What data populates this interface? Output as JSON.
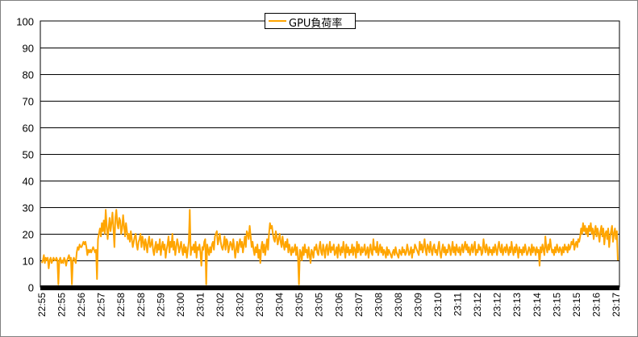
{
  "colors": {
    "series": "#FFA500",
    "grid": "#000000",
    "axis_band": "#000000"
  },
  "chart_data": {
    "type": "line",
    "title": "",
    "xlabel": "",
    "ylabel": "",
    "ylim": [
      0,
      100
    ],
    "yticks": [
      "0",
      "10",
      "20",
      "30",
      "40",
      "50",
      "60",
      "70",
      "80",
      "90",
      "100"
    ],
    "grid": true,
    "legend_position": "top",
    "x_tick_labels": [
      "22:55",
      "22:55",
      "22:56",
      "22:57",
      "22:58",
      "22:58",
      "22:59",
      "23:00",
      "23:01",
      "23:02",
      "23:02",
      "23:03",
      "23:04",
      "23:05",
      "23:05",
      "23:06",
      "23:07",
      "23:08",
      "23:08",
      "23:09",
      "23:10",
      "23:11",
      "23:12",
      "23:12",
      "23:13",
      "23:14",
      "23:15",
      "23:15",
      "23:16",
      "23:17"
    ],
    "series": [
      {
        "name": "GPU負荷率",
        "values": [
          9,
          10,
          12,
          9,
          11,
          10,
          11,
          7,
          10,
          11,
          9,
          10,
          11,
          10,
          10,
          11,
          10,
          1,
          10,
          11,
          9,
          10,
          9,
          11,
          10,
          8,
          10,
          11,
          12,
          10,
          11,
          1,
          10,
          11,
          10,
          9,
          13,
          15,
          14,
          16,
          15,
          15,
          16,
          17,
          16,
          17,
          15,
          12,
          14,
          13,
          14,
          13,
          14,
          15,
          14,
          13,
          14,
          3,
          18,
          20,
          22,
          19,
          24,
          21,
          25,
          20,
          29,
          23,
          18,
          22,
          26,
          21,
          24,
          28,
          22,
          15,
          26,
          29,
          24,
          22,
          26,
          25,
          20,
          22,
          27,
          23,
          19,
          24,
          21,
          18,
          20,
          17,
          21,
          18,
          15,
          17,
          19,
          20,
          16,
          14,
          17,
          18,
          20,
          15,
          19,
          17,
          14,
          18,
          16,
          13,
          17,
          19,
          15,
          16,
          18,
          14,
          12,
          15,
          17,
          13,
          16,
          14,
          18,
          12,
          15,
          17,
          14,
          16,
          11,
          14,
          16,
          19,
          13,
          17,
          15,
          20,
          14,
          17,
          12,
          15,
          18,
          16,
          13,
          15,
          17,
          14,
          12,
          16,
          13,
          15,
          11,
          14,
          17,
          29,
          12,
          15,
          14,
          16,
          13,
          17,
          11,
          15,
          14,
          16,
          13,
          8,
          15,
          14,
          17,
          18,
          1,
          16,
          14,
          12,
          15,
          13,
          16,
          17,
          14,
          19,
          20,
          21,
          16,
          18,
          20,
          17,
          15,
          14,
          16,
          19,
          14,
          18,
          17,
          13,
          15,
          17,
          16,
          14,
          18,
          15,
          11,
          14,
          17,
          13,
          16,
          18,
          15,
          17,
          13,
          16,
          19,
          15,
          21,
          20,
          18,
          23,
          19,
          15,
          17,
          14,
          12,
          15,
          13,
          16,
          11,
          14,
          9,
          15,
          17,
          13,
          16,
          12,
          15,
          18,
          14,
          20,
          24,
          22,
          23,
          20,
          18,
          17,
          21,
          19,
          16,
          18,
          20,
          17,
          15,
          19,
          16,
          14,
          17,
          15,
          18,
          13,
          16,
          14,
          12,
          15,
          13,
          14,
          16,
          12,
          15,
          11,
          1,
          14,
          13,
          10,
          15,
          12,
          16,
          13,
          14,
          11,
          15,
          12,
          9,
          14,
          13,
          11,
          15,
          14,
          16,
          13,
          12,
          15,
          17,
          13,
          12,
          16,
          14,
          11,
          15,
          16,
          12,
          14,
          17,
          13,
          15,
          14,
          16,
          12,
          13,
          15,
          11,
          16,
          14,
          12,
          15,
          13,
          17,
          14,
          11,
          16,
          13,
          15,
          12,
          14,
          13,
          16,
          12,
          15,
          14,
          11,
          17,
          13,
          16,
          14,
          12,
          15,
          13,
          14,
          16,
          12,
          13,
          15,
          11,
          14,
          16,
          13,
          12,
          18,
          14,
          15,
          13,
          17,
          12,
          14,
          16,
          13,
          15,
          12,
          14,
          13,
          11,
          15,
          12,
          14,
          13,
          12,
          11,
          13,
          14,
          12,
          15,
          13,
          12,
          11,
          14,
          13,
          12,
          15,
          13,
          14,
          12,
          13,
          16,
          14,
          12,
          13,
          15,
          11,
          14,
          13,
          16,
          15,
          14,
          13,
          12,
          17,
          14,
          16,
          13,
          15,
          18,
          14,
          12,
          16,
          15,
          13,
          17,
          14,
          12,
          15,
          16,
          13,
          14,
          12,
          15,
          17,
          13,
          11,
          14,
          16,
          13,
          15,
          12,
          14,
          13,
          16,
          15,
          12,
          14,
          17,
          13,
          15,
          12,
          16,
          14,
          13,
          15,
          12,
          14,
          16,
          13,
          15,
          17,
          14,
          16,
          13,
          15,
          12,
          14,
          16,
          13,
          15,
          17,
          12,
          14,
          13,
          16,
          14,
          15,
          12,
          13,
          18,
          15,
          13,
          16,
          14,
          12,
          15,
          13,
          14,
          12,
          15,
          13,
          16,
          14,
          12,
          15,
          17,
          14,
          13,
          16,
          12,
          14,
          15,
          13,
          16,
          14,
          12,
          15,
          13,
          17,
          14,
          12,
          15,
          13,
          16,
          14,
          11,
          15,
          13,
          14,
          12,
          15,
          13,
          16,
          14,
          12,
          13,
          15,
          14,
          12,
          16,
          13,
          15,
          14,
          12,
          15,
          13,
          14,
          8,
          15,
          13,
          16,
          14,
          12,
          19,
          15,
          13,
          16,
          14,
          18,
          15,
          13,
          14,
          12,
          15,
          13,
          16,
          14,
          13,
          15,
          14,
          12,
          15,
          13,
          16,
          14,
          15,
          13,
          16,
          14,
          15,
          17,
          16,
          18,
          14,
          16,
          17,
          15,
          18,
          17,
          19,
          22,
          20,
          24,
          21,
          23,
          20,
          22,
          19,
          23,
          21,
          24,
          20,
          22,
          18,
          21,
          23,
          19,
          22,
          20,
          17,
          21,
          23,
          19,
          22,
          16,
          20,
          21,
          18,
          22,
          15,
          19,
          21,
          23,
          17,
          20,
          22,
          18,
          21,
          10
        ]
      }
    ]
  }
}
